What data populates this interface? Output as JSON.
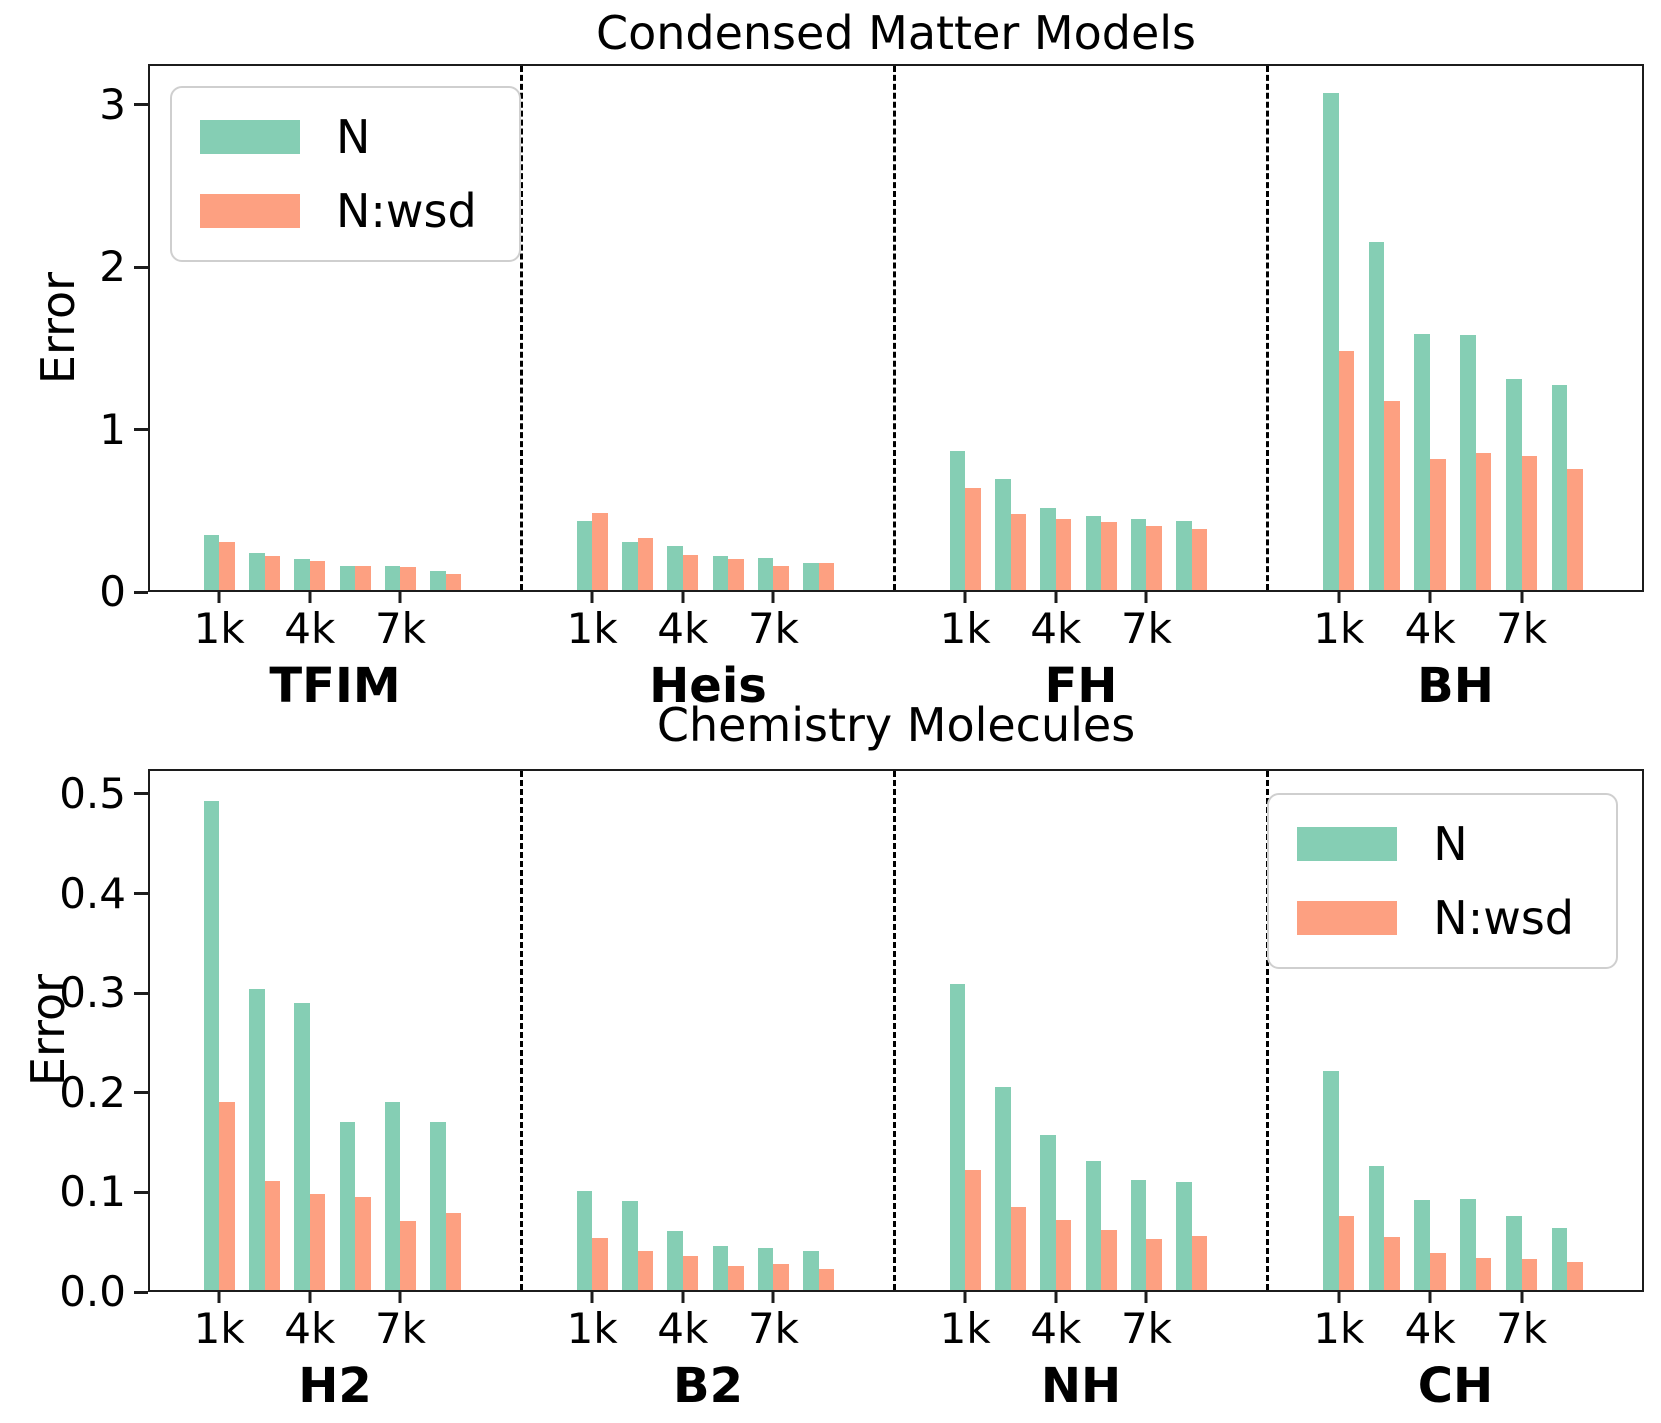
{
  "figure": {
    "background": "#ffffff",
    "axis_color": "#1c1c1c",
    "separator_color": "#000000",
    "legend_border_color": "#cfcfcf",
    "series_colors": {
      "N": "#85CEB4",
      "N:wsd": "#FDA081"
    }
  },
  "chart_data": [
    {
      "type": "bar",
      "title": "Condensed Matter Models",
      "ylabel": "Error",
      "ylim": [
        0,
        3.25
      ],
      "ytick_values": [
        0,
        1,
        2,
        3
      ],
      "ytick_labels": [
        "0",
        "1",
        "2",
        "3"
      ],
      "xtick_labels": [
        "1k",
        "4k",
        "7k"
      ],
      "xtick_pair_indices": [
        0,
        2,
        4
      ],
      "grid": false,
      "legend_position": "top-left",
      "legend_entries": [
        {
          "label": "N",
          "color": "#85CEB4"
        },
        {
          "label": "N:wsd",
          "color": "#FDA081"
        }
      ],
      "groups": [
        {
          "label": "TFIM",
          "series": [
            {
              "name": "N",
              "values": [
                0.34,
                0.23,
                0.19,
                0.15,
                0.15,
                0.12
              ]
            },
            {
              "name": "N:wsd",
              "values": [
                0.3,
                0.21,
                0.18,
                0.15,
                0.14,
                0.1
              ]
            }
          ]
        },
        {
          "label": "Heis",
          "series": [
            {
              "name": "N",
              "values": [
                0.43,
                0.3,
                0.27,
                0.21,
                0.2,
                0.17
              ]
            },
            {
              "name": "N:wsd",
              "values": [
                0.48,
                0.32,
                0.22,
                0.19,
                0.15,
                0.17
              ]
            }
          ]
        },
        {
          "label": "FH",
          "series": [
            {
              "name": "N",
              "values": [
                0.86,
                0.69,
                0.51,
                0.46,
                0.44,
                0.43
              ]
            },
            {
              "name": "N:wsd",
              "values": [
                0.63,
                0.47,
                0.44,
                0.42,
                0.4,
                0.38
              ]
            }
          ]
        },
        {
          "label": "BH",
          "series": [
            {
              "name": "N",
              "values": [
                3.08,
                2.16,
                1.59,
                1.58,
                1.31,
                1.27
              ]
            },
            {
              "name": "N:wsd",
              "values": [
                1.48,
                1.17,
                0.81,
                0.85,
                0.83,
                0.75
              ]
            }
          ]
        }
      ]
    },
    {
      "type": "bar",
      "title": "Chemistry Molecules",
      "ylabel": "Error",
      "ylim": [
        0,
        0.525
      ],
      "ytick_values": [
        0.0,
        0.1,
        0.2,
        0.3,
        0.4,
        0.5
      ],
      "ytick_labels": [
        "0.0",
        "0.1",
        "0.2",
        "0.3",
        "0.4",
        "0.5"
      ],
      "xtick_labels": [
        "1k",
        "4k",
        "7k"
      ],
      "xtick_pair_indices": [
        0,
        2,
        4
      ],
      "grid": false,
      "legend_position": "top-right",
      "legend_entries": [
        {
          "label": "N",
          "color": "#85CEB4"
        },
        {
          "label": "N:wsd",
          "color": "#FDA081"
        }
      ],
      "groups": [
        {
          "label": "H2",
          "series": [
            {
              "name": "N",
              "values": [
                0.495,
                0.305,
                0.29,
                0.17,
                0.19,
                0.17
              ]
            },
            {
              "name": "N:wsd",
              "values": [
                0.19,
                0.11,
                0.097,
                0.094,
                0.07,
                0.078
              ]
            }
          ]
        },
        {
          "label": "B2",
          "series": [
            {
              "name": "N",
              "values": [
                0.1,
                0.09,
                0.06,
                0.045,
                0.042,
                0.039
              ]
            },
            {
              "name": "N:wsd",
              "values": [
                0.053,
                0.039,
                0.034,
                0.024,
                0.026,
                0.021
              ]
            }
          ]
        },
        {
          "label": "NH",
          "series": [
            {
              "name": "N",
              "values": [
                0.31,
                0.205,
                0.157,
                0.131,
                0.111,
                0.109
              ]
            },
            {
              "name": "N:wsd",
              "values": [
                0.121,
                0.084,
                0.071,
                0.061,
                0.052,
                0.055
              ]
            }
          ]
        },
        {
          "label": "CH",
          "series": [
            {
              "name": "N",
              "values": [
                0.222,
                0.125,
                0.091,
                0.092,
                0.075,
                0.063
              ]
            },
            {
              "name": "N:wsd",
              "values": [
                0.075,
                0.054,
                0.037,
                0.032,
                0.031,
                0.028
              ]
            }
          ]
        }
      ]
    }
  ]
}
